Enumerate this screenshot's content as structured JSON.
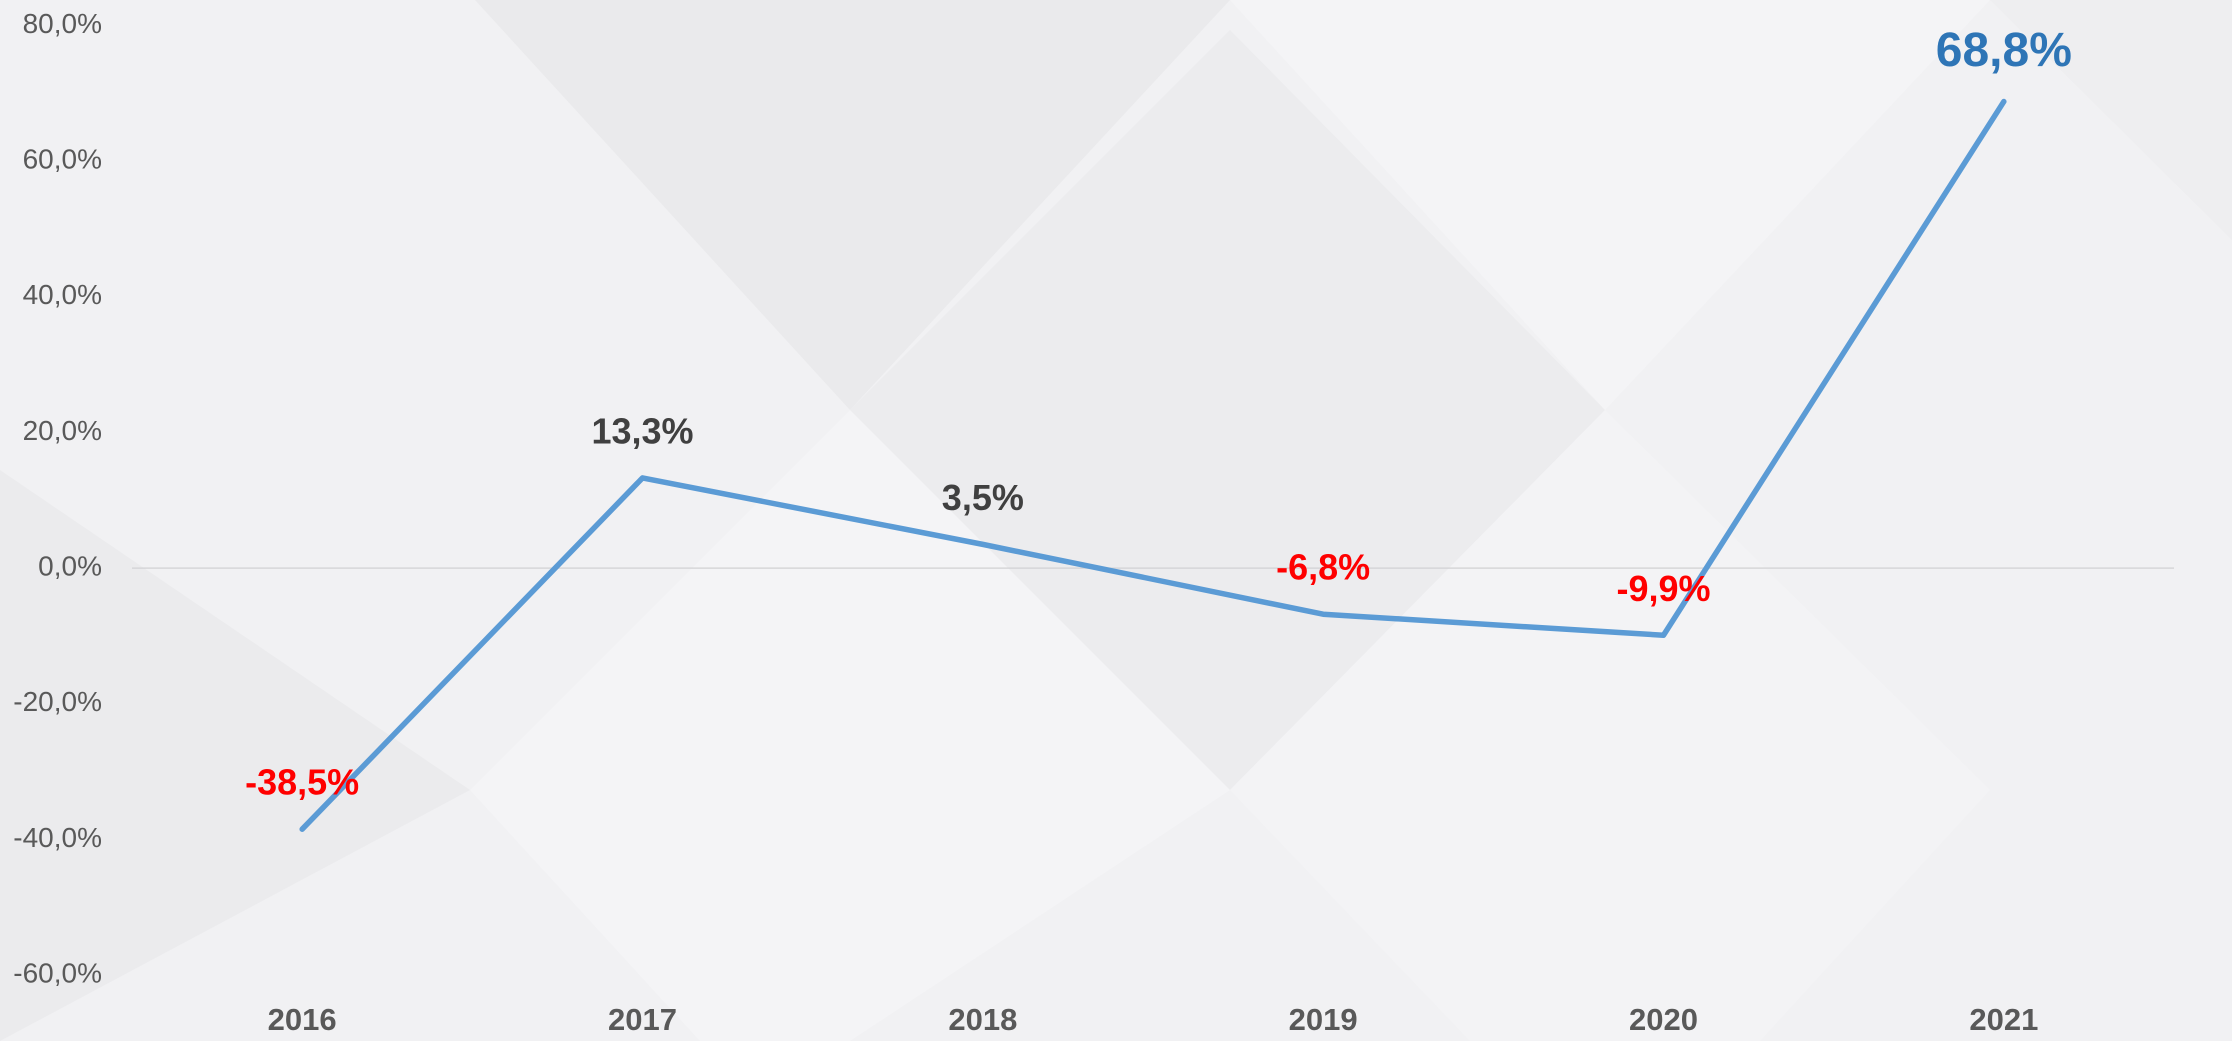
{
  "chart_data": {
    "type": "line",
    "categories": [
      "2016",
      "2017",
      "2018",
      "2019",
      "2020",
      "2021"
    ],
    "series": [
      {
        "color": "#5b9bd5",
        "values": [
          -38.5,
          13.3,
          3.5,
          -6.8,
          -9.9,
          68.8
        ],
        "value_labels": [
          "-38,5%",
          "13,3%",
          "3,5%",
          "-6,8%",
          "-9,9%",
          "68,8%"
        ],
        "value_label_colors": [
          "#ff0000",
          "#404040",
          "#404040",
          "#ff0000",
          "#ff0000",
          "#2e75b6"
        ]
      }
    ],
    "ylim": [
      -60,
      80
    ],
    "yticks": [
      {
        "value": -60,
        "label": "-60,0%"
      },
      {
        "value": -40,
        "label": "-40,0%"
      },
      {
        "value": -20,
        "label": "-20,0%"
      },
      {
        "value": 0,
        "label": "0,0%"
      },
      {
        "value": 20,
        "label": "20,0%"
      },
      {
        "value": 40,
        "label": "40,0%"
      },
      {
        "value": 60,
        "label": "60,0%"
      },
      {
        "value": 80,
        "label": "80,0%"
      }
    ],
    "grid": false
  }
}
